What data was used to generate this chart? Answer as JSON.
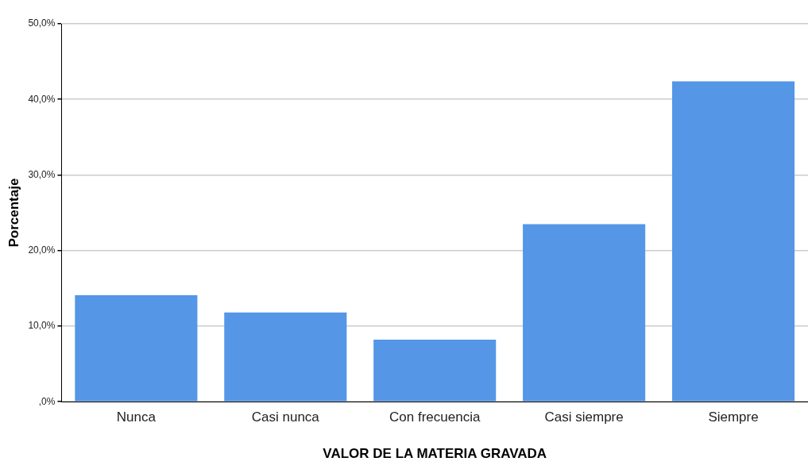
{
  "chart_data": {
    "type": "bar",
    "xlabel": "VALOR DE LA MATERIA GRAVADA",
    "ylabel": "Porcentaje",
    "categories": [
      "Nunca",
      "Casi nunca",
      "Con frecuencia",
      "Casi siempre",
      "Siempre"
    ],
    "values": [
      14.1,
      11.8,
      8.2,
      23.5,
      42.4
    ],
    "color": "#5596e6",
    "ylim": [
      0,
      50
    ],
    "yticks": [
      {
        "value": 0,
        "label": ",0%"
      },
      {
        "value": 10,
        "label": "10,0%"
      },
      {
        "value": 20,
        "label": "20,0%"
      },
      {
        "value": 30,
        "label": "30,0%"
      },
      {
        "value": 40,
        "label": "40,0%"
      },
      {
        "value": 50,
        "label": "50,0%"
      }
    ],
    "grid": "y"
  }
}
